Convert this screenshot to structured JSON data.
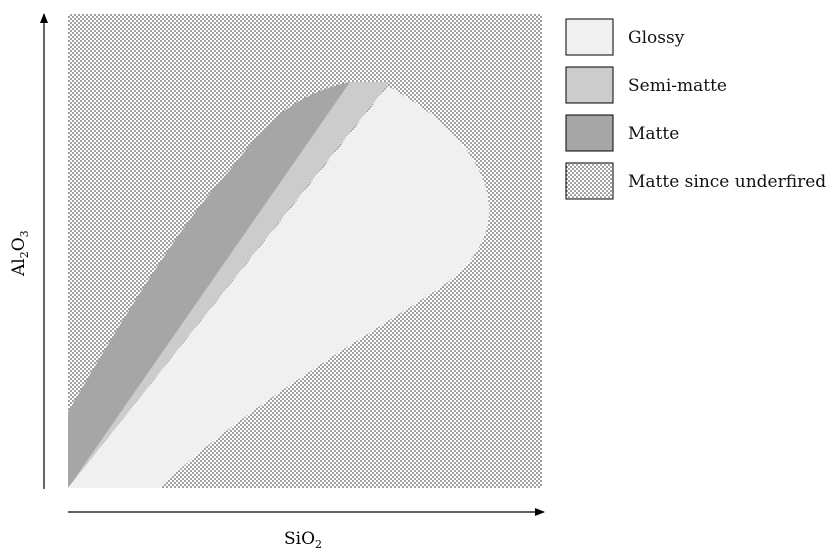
{
  "axes": {
    "x": {
      "base": "SiO",
      "sub": "2"
    },
    "y": {
      "base": "Al",
      "sub1": "2",
      "mid": "O",
      "sub2": "3"
    }
  },
  "regions": [
    {
      "key": "glossy",
      "label": "Glossy",
      "color": "#f0f0f0"
    },
    {
      "key": "semi-matte",
      "label": "Semi-matte",
      "color": "#cccccc"
    },
    {
      "key": "matte",
      "label": "Matte",
      "color": "#a6a6a6"
    },
    {
      "key": "underfired",
      "label": "Matte since underfired",
      "color": "#ffffff",
      "pattern": "dots"
    }
  ]
}
